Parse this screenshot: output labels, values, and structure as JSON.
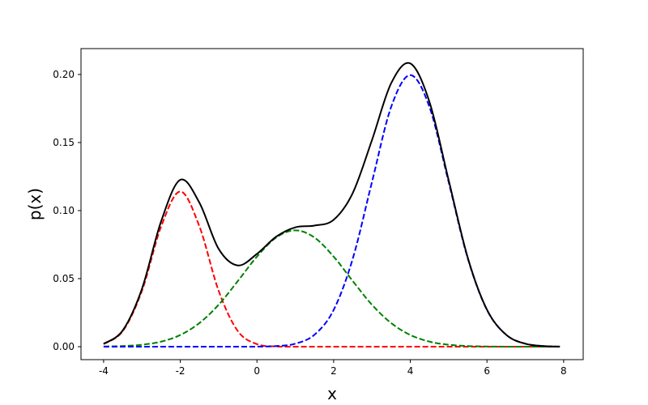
{
  "chart_data": {
    "type": "line",
    "xlabel": "x",
    "ylabel": "p(x)",
    "x": [
      -4,
      -3.5,
      -3,
      -2.5,
      -2,
      -1.5,
      -1,
      -0.5,
      0,
      0.5,
      1,
      1.5,
      2,
      2.5,
      3,
      3.5,
      4,
      4.5,
      5,
      5.5,
      6,
      6.5,
      7,
      7.5,
      7.9
    ],
    "series": [
      {
        "color": "#ff0000",
        "linestyle": "dashed",
        "values": [
          0.0019,
          0.0115,
          0.0411,
          0.0883,
          0.114,
          0.0883,
          0.0411,
          0.0115,
          0.0019,
          0.0002,
          0,
          0,
          0,
          0,
          0,
          0,
          0,
          0,
          0,
          0,
          0,
          0,
          0,
          0,
          0
        ]
      },
      {
        "color": "#008000",
        "linestyle": "dashed",
        "values": [
          0.00015,
          0.00049,
          0.00144,
          0.00375,
          0.0086,
          0.0174,
          0.0308,
          0.0482,
          0.0662,
          0.0802,
          0.0855,
          0.0802,
          0.0662,
          0.0482,
          0.0308,
          0.0174,
          0.0086,
          0.00375,
          0.00144,
          0.00049,
          0.00015,
          4e-05,
          1e-05,
          0,
          0
        ]
      },
      {
        "color": "#0000ff",
        "linestyle": "dashed",
        "values": [
          0,
          0,
          0,
          0,
          0,
          0,
          0,
          1e-05,
          7e-05,
          0.00044,
          0.0022,
          0.0088,
          0.027,
          0.0648,
          0.121,
          0.1761,
          0.1995,
          0.1761,
          0.121,
          0.0648,
          0.027,
          0.0088,
          0.0022,
          0.00044,
          0.0001
        ]
      },
      {
        "color": "#000000",
        "linestyle": "solid",
        "values": [
          0.0021,
          0.012,
          0.0425,
          0.0921,
          0.1226,
          0.1057,
          0.0719,
          0.0597,
          0.0682,
          0.0808,
          0.0877,
          0.089,
          0.0932,
          0.113,
          0.1518,
          0.1935,
          0.2081,
          0.1798,
          0.1224,
          0.0653,
          0.0272,
          0.0088,
          0.0022,
          0.00044,
          0.0001
        ]
      }
    ],
    "xlim": [
      -4.59,
      8.51
    ],
    "ylim": [
      -0.0095,
      0.219
    ],
    "xticks": [
      -4,
      -2,
      0,
      2,
      4,
      6,
      8
    ],
    "yticks": [
      {
        "value": 0,
        "label": "0.00"
      },
      {
        "value": 0.05,
        "label": "0.05"
      },
      {
        "value": 0.1,
        "label": "0.10"
      },
      {
        "value": 0.15,
        "label": "0.15"
      },
      {
        "value": 0.2,
        "label": "0.20"
      }
    ]
  }
}
